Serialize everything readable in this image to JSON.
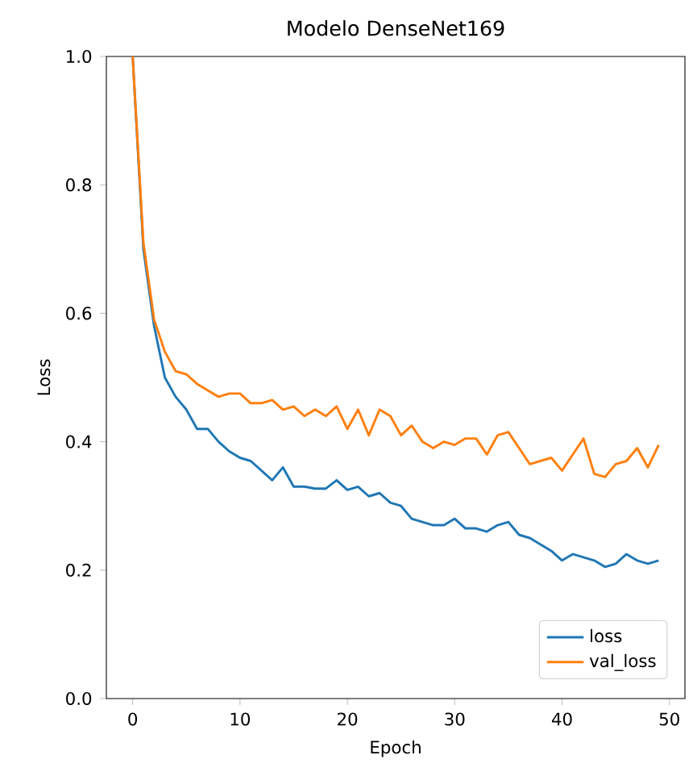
{
  "chart_data": {
    "type": "line",
    "title": "Modelo DenseNet169",
    "xlabel": "Epoch",
    "ylabel": "Loss",
    "x": [
      0,
      1,
      2,
      3,
      4,
      5,
      6,
      7,
      8,
      9,
      10,
      11,
      12,
      13,
      14,
      15,
      16,
      17,
      18,
      19,
      20,
      21,
      22,
      23,
      24,
      25,
      26,
      27,
      28,
      29,
      30,
      31,
      32,
      33,
      34,
      35,
      36,
      37,
      38,
      39,
      40,
      41,
      42,
      43,
      44,
      45,
      46,
      47,
      48,
      49
    ],
    "series": [
      {
        "name": "loss",
        "color": "#1f77b4",
        "values": [
          1.0,
          0.7,
          0.58,
          0.5,
          0.47,
          0.45,
          0.42,
          0.42,
          0.4,
          0.385,
          0.375,
          0.37,
          0.355,
          0.34,
          0.36,
          0.33,
          0.33,
          0.327,
          0.327,
          0.34,
          0.325,
          0.33,
          0.315,
          0.32,
          0.305,
          0.3,
          0.28,
          0.275,
          0.27,
          0.27,
          0.28,
          0.265,
          0.265,
          0.26,
          0.27,
          0.275,
          0.255,
          0.25,
          0.24,
          0.23,
          0.215,
          0.225,
          0.22,
          0.215,
          0.205,
          0.21,
          0.225,
          0.215,
          0.21,
          0.215
        ]
      },
      {
        "name": "val_loss",
        "color": "#ff7f0e",
        "values": [
          1.0,
          0.71,
          0.59,
          0.54,
          0.51,
          0.505,
          0.49,
          0.48,
          0.47,
          0.475,
          0.475,
          0.46,
          0.46,
          0.465,
          0.45,
          0.455,
          0.44,
          0.45,
          0.44,
          0.455,
          0.42,
          0.45,
          0.41,
          0.45,
          0.44,
          0.41,
          0.425,
          0.4,
          0.39,
          0.4,
          0.395,
          0.405,
          0.405,
          0.38,
          0.41,
          0.415,
          0.39,
          0.365,
          0.37,
          0.375,
          0.355,
          0.38,
          0.405,
          0.35,
          0.345,
          0.365,
          0.37,
          0.39,
          0.36,
          0.395
        ]
      }
    ],
    "xlim": [
      -2.45,
      51.45
    ],
    "ylim": [
      0,
      1
    ],
    "xticks": [
      0,
      10,
      20,
      30,
      40,
      50
    ],
    "yticks": [
      {
        "value": 0,
        "label": "0.0"
      },
      {
        "value": 0.2,
        "label": "0.2"
      },
      {
        "value": 0.4,
        "label": "0.4"
      },
      {
        "value": 0.6,
        "label": "0.6"
      },
      {
        "value": 0.8,
        "label": "0.8"
      },
      {
        "value": 1.0,
        "label": "1.0"
      }
    ],
    "legend": "bottom right",
    "grid": false,
    "marker": "none",
    "line_style": "solid"
  }
}
